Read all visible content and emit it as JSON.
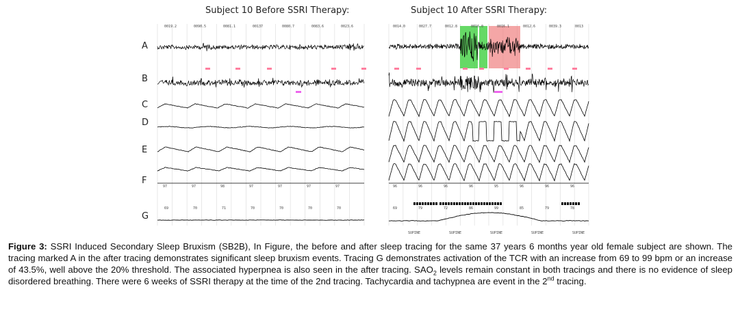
{
  "figure": {
    "left_panel_title": "Subject 10 Before SSRI Therapy:",
    "right_panel_title": "Subject 10 After SSRI Therapy:",
    "row_labels": [
      "A",
      "B",
      "C",
      "D",
      "E",
      "F",
      "G"
    ],
    "left_header_ticks": [
      "0019.2",
      "0090.5",
      "0081.1",
      "00137",
      "0080.7",
      "0083.6",
      "0023.6"
    ],
    "right_header_ticks": [
      "0014.0",
      "0027.7",
      "0012.8",
      "0016.0",
      "0016.1",
      "0012.6",
      "0039.3",
      "0013"
    ],
    "left_f_values": [
      "97",
      "97",
      "98",
      "97",
      "97",
      "97",
      "97"
    ],
    "right_f_values": [
      "96",
      "96",
      "96",
      "96",
      "95",
      "96",
      "96",
      "96"
    ],
    "left_g_values": [
      "69",
      "70",
      "71",
      "70",
      "70",
      "70",
      "70"
    ],
    "right_g_values": [
      "69",
      "79",
      "72",
      "86",
      "99",
      "85",
      "79",
      "78"
    ],
    "position_labels": [
      "SUPINE",
      "SUPINE",
      "SUPINE",
      "SUPINE",
      "SUPINE"
    ],
    "colors": {
      "trace": "#000000",
      "event_red": "#f08080",
      "event_green": "#33cc33",
      "marker_pink": "#ff7f9f",
      "marker_magenta": "#ee66ee",
      "grid": "#d8d8d8"
    }
  },
  "caption": {
    "label": "Figure 3:",
    "part1": " SSRI Induced Secondary Sleep Bruxism (SB2B), In Figure, the before and after sleep tracing for the same 37 years 6 months year old female subject are shown. The tracing marked A in the after tracing demonstrates significant sleep bruxism events. Tracing G demonstrates activation of the TCR with an increase from 69 to 99 bpm or an increase of 43.5%, well above the 20% threshold. The associated hyperpnea is also seen in the after tracing. SAO",
    "sub": "2",
    "part2": " levels remain constant in both tracings and there is no evidence of sleep disordered breathing. There were 6 weeks of SSRI therapy at the time of the 2nd tracing. Tachycardia and tachypnea are event in the 2",
    "sup": "nd",
    "part3": " tracing."
  }
}
